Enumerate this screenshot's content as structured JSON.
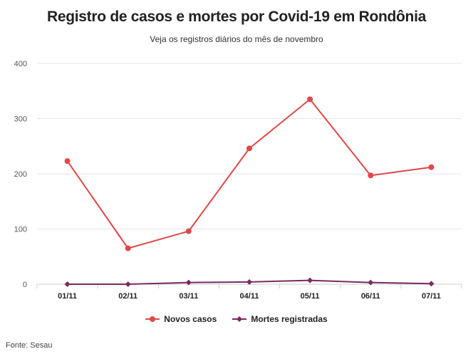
{
  "header": {
    "title": "Registro de casos e mortes por Covid-19 em Rondônia",
    "subtitle": "Veja os registros diários do mês de novembro"
  },
  "source": "Fonte: Sesau",
  "colors": {
    "novos_casos": "#e04848",
    "mortes": "#7a2b5e",
    "grid": "#e6e6e6",
    "axis": "#cccccc"
  },
  "chart_data": {
    "type": "line",
    "title": "Registro de casos e mortes por Covid-19 em Rondônia",
    "subtitle": "Veja os registros diários do mês de novembro",
    "xlabel": "",
    "ylabel": "",
    "categories": [
      "01/11",
      "02/11",
      "03/11",
      "04/11",
      "05/11",
      "06/11",
      "07/11"
    ],
    "ylim": [
      0,
      400
    ],
    "yticks": [
      0,
      100,
      200,
      300,
      400
    ],
    "grid": true,
    "legend_position": "bottom",
    "series": [
      {
        "name": "Novos casos",
        "marker": "circle",
        "values": [
          223,
          65,
          96,
          246,
          335,
          197,
          212
        ]
      },
      {
        "name": "Mortes registradas",
        "marker": "diamond",
        "values": [
          0,
          0,
          3,
          4,
          7,
          3,
          1
        ]
      }
    ]
  }
}
